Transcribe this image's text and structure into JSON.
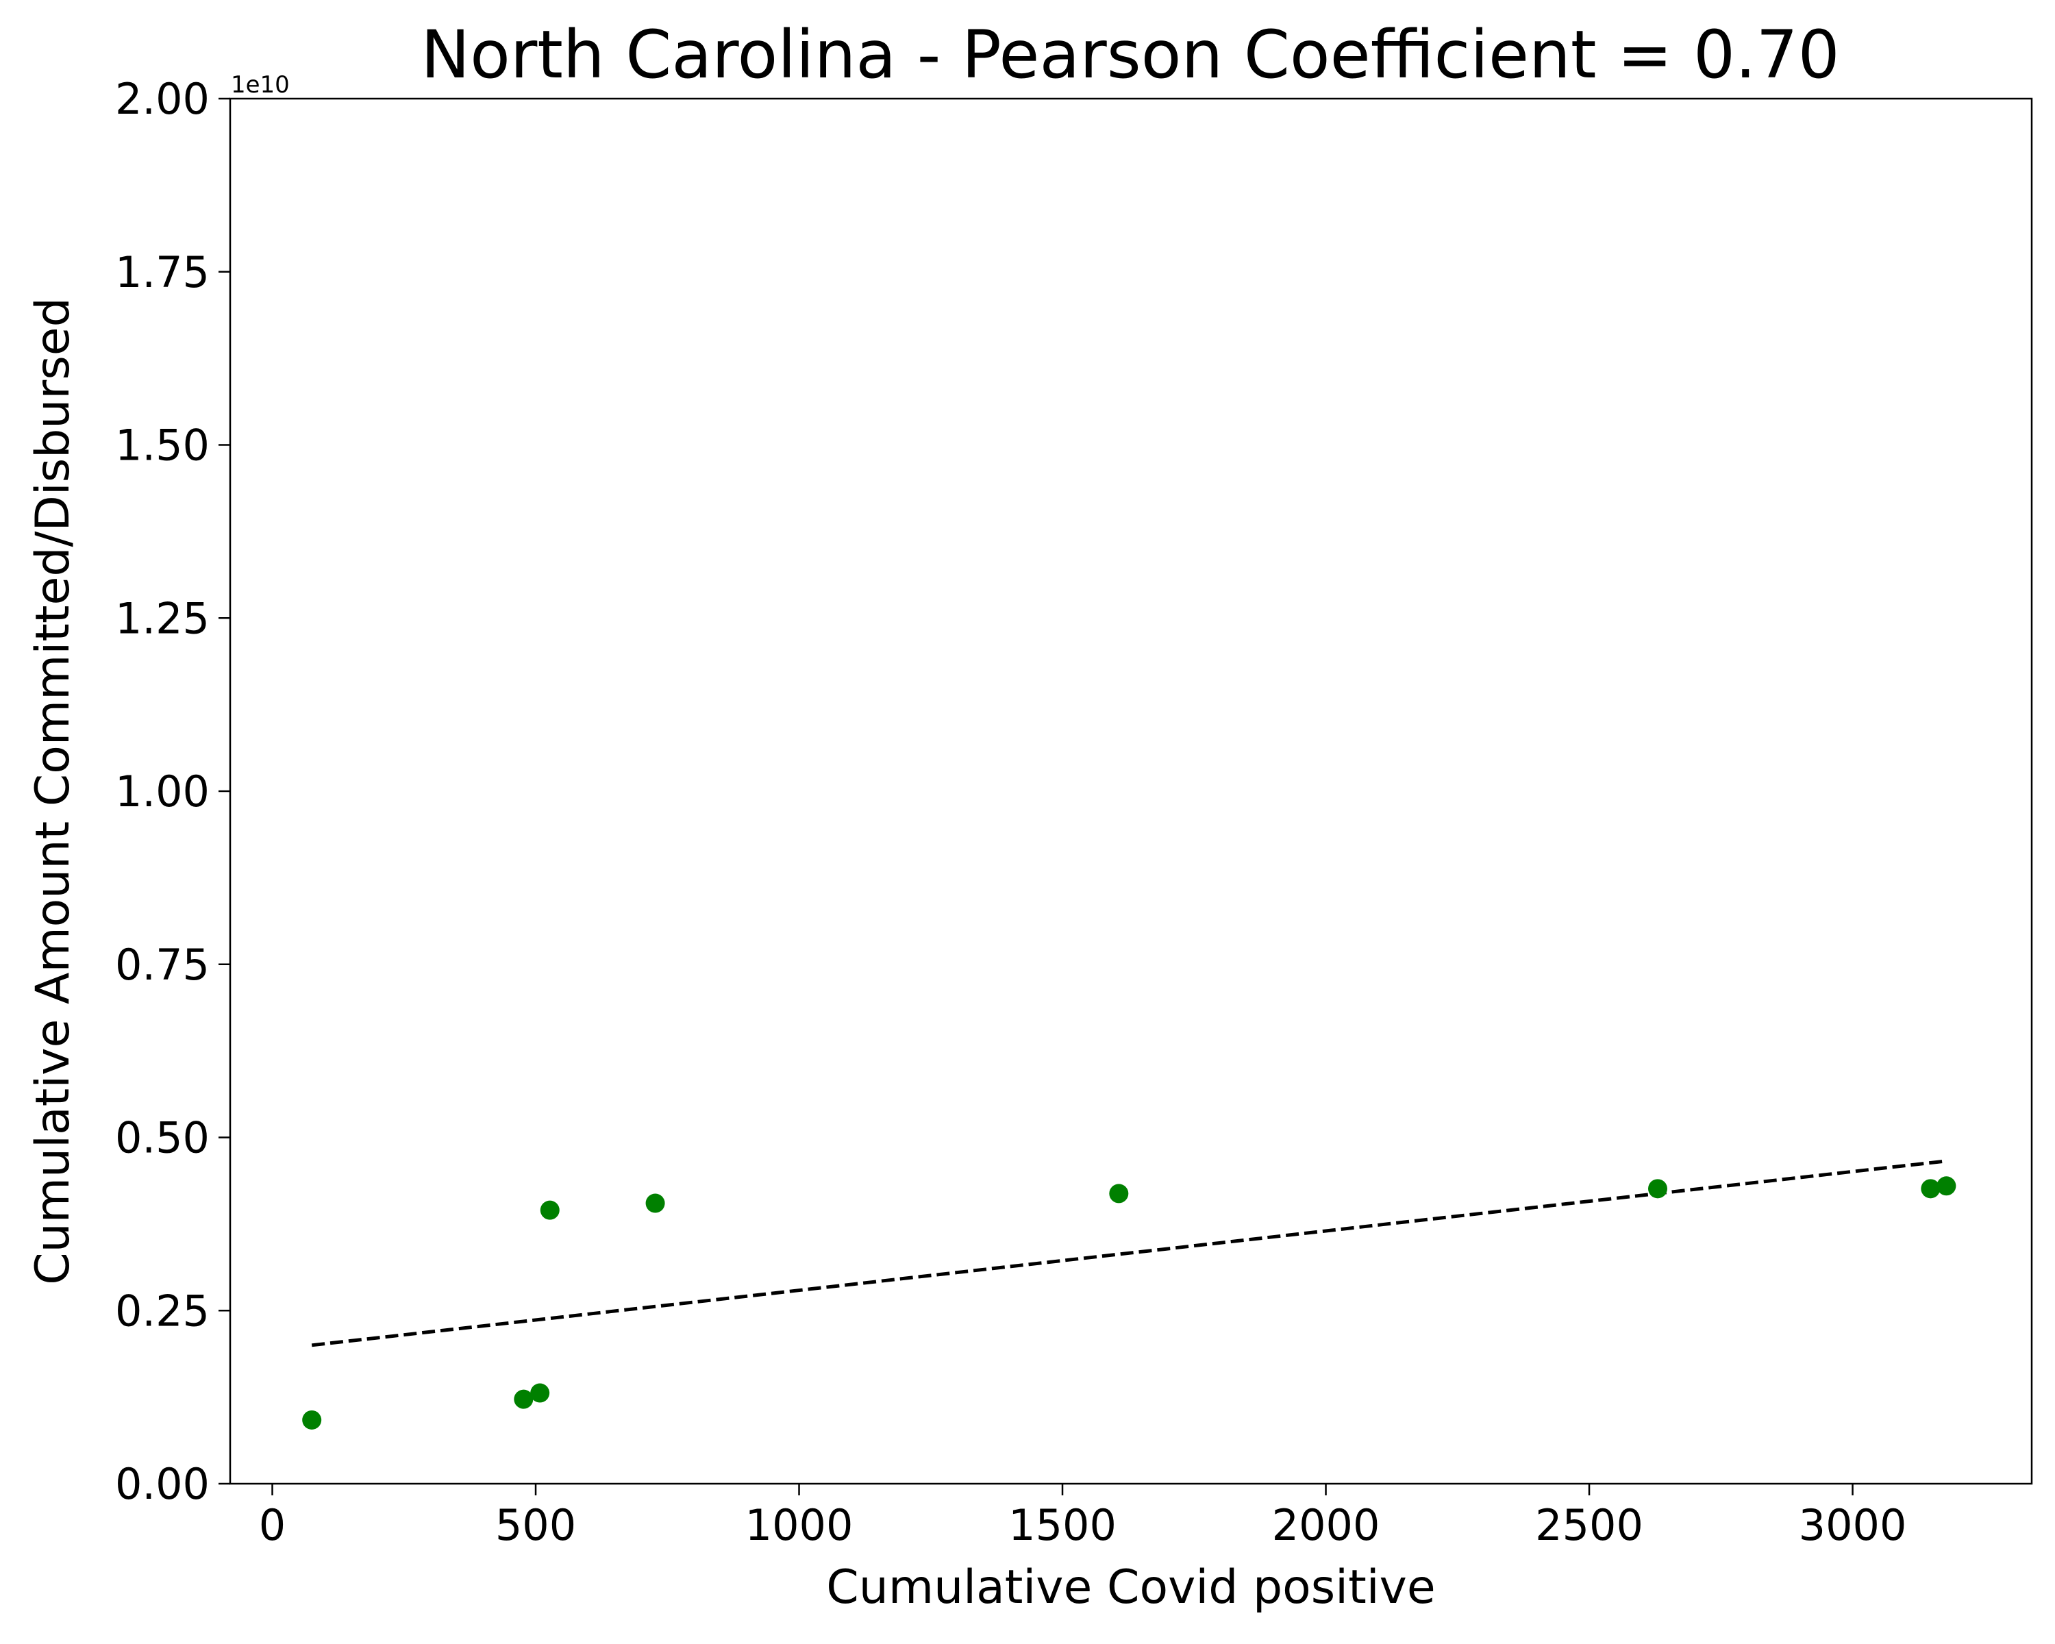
{
  "chart_data": {
    "type": "scatter",
    "title": "North Carolina - Pearson Coefficient = 0.70",
    "xlabel": "Cumulative Covid positive",
    "ylabel": "Cumulative Amount Committed/Disbursed",
    "y_offset_label": "1e10",
    "xlim": [
      -80,
      3340
    ],
    "ylim": [
      0,
      2.0
    ],
    "y_scale_note": "values in units of 1e10",
    "x_ticks": [
      0,
      500,
      1000,
      1500,
      2000,
      2500,
      3000
    ],
    "x_tick_labels": [
      "0",
      "500",
      "1000",
      "1500",
      "2000",
      "2500",
      "3000"
    ],
    "y_ticks": [
      0,
      0.25,
      0.5,
      0.75,
      1.0,
      1.25,
      1.5,
      1.75,
      2.0
    ],
    "y_tick_labels": [
      "0.00",
      "0.25",
      "0.50",
      "0.75",
      "1.00",
      "1.25",
      "1.50",
      "1.75",
      "2.00"
    ],
    "grid": false,
    "series": [
      {
        "kind": "points",
        "color": "#008000",
        "x": [
          75,
          477,
          508,
          527,
          727,
          1607,
          2630,
          3148,
          3178
        ],
        "y": [
          0.092,
          0.122,
          0.131,
          0.395,
          0.405,
          0.419,
          0.426,
          0.426,
          0.43
        ]
      },
      {
        "kind": "trend-line",
        "style": "dashed",
        "color": "#000000",
        "x": [
          75,
          3178
        ],
        "y": [
          0.2,
          0.466
        ]
      }
    ]
  }
}
